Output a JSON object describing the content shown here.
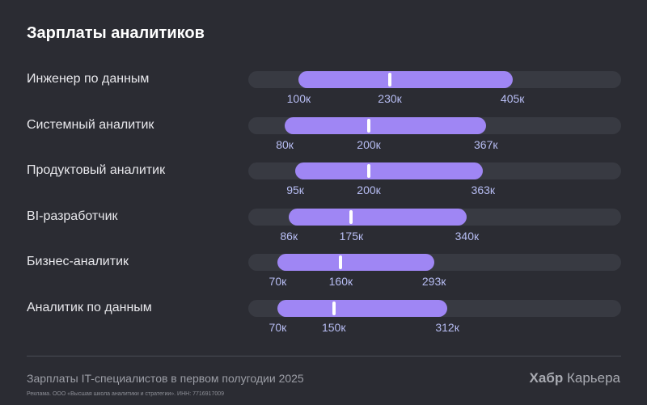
{
  "title": "Зарплаты аналитиков",
  "footer": {
    "note": "Зарплаты IT-специалистов в первом полугодии 2025",
    "legal": "Реклама. ООО «Высшая школа аналитики и стратегии». ИНН: 7716917009",
    "brand_strong": "Хабр",
    "brand_rest": " Карьера"
  },
  "colors": {
    "background": "#2b2c33",
    "track": "#383a42",
    "range": "#9f86f4",
    "median": "#ffffff",
    "tick_text": "#b7bdf3"
  },
  "chart_data": {
    "type": "bar",
    "title": "Зарплаты аналитиков",
    "xlim": [
      28,
      560
    ],
    "categories": [
      "Инженер по данным",
      "Системный аналитик",
      "Продуктовый аналитик",
      "BI-разработчик",
      "Бизнес-аналитик",
      "Аналитик по данным"
    ],
    "rows": [
      {
        "label": "Инженер по данным",
        "min": 100,
        "median": 230,
        "max": 405,
        "min_label": "100к",
        "median_label": "230к",
        "max_label": "405к"
      },
      {
        "label": "Системный аналитик",
        "min": 80,
        "median": 200,
        "max": 367,
        "min_label": "80к",
        "median_label": "200к",
        "max_label": "367к"
      },
      {
        "label": "Продуктовый аналитик",
        "min": 95,
        "median": 200,
        "max": 363,
        "min_label": "95к",
        "median_label": "200к",
        "max_label": "363к"
      },
      {
        "label": "BI-разработчик",
        "min": 86,
        "median": 175,
        "max": 340,
        "min_label": "86к",
        "median_label": "175к",
        "max_label": "340к"
      },
      {
        "label": "Бизнес-аналитик",
        "min": 70,
        "median": 160,
        "max": 293,
        "min_label": "70к",
        "median_label": "160к",
        "max_label": "293к"
      },
      {
        "label": "Аналитик по данным",
        "min": 70,
        "median": 150,
        "max": 312,
        "min_label": "70к",
        "median_label": "150к",
        "max_label": "312к"
      }
    ]
  }
}
